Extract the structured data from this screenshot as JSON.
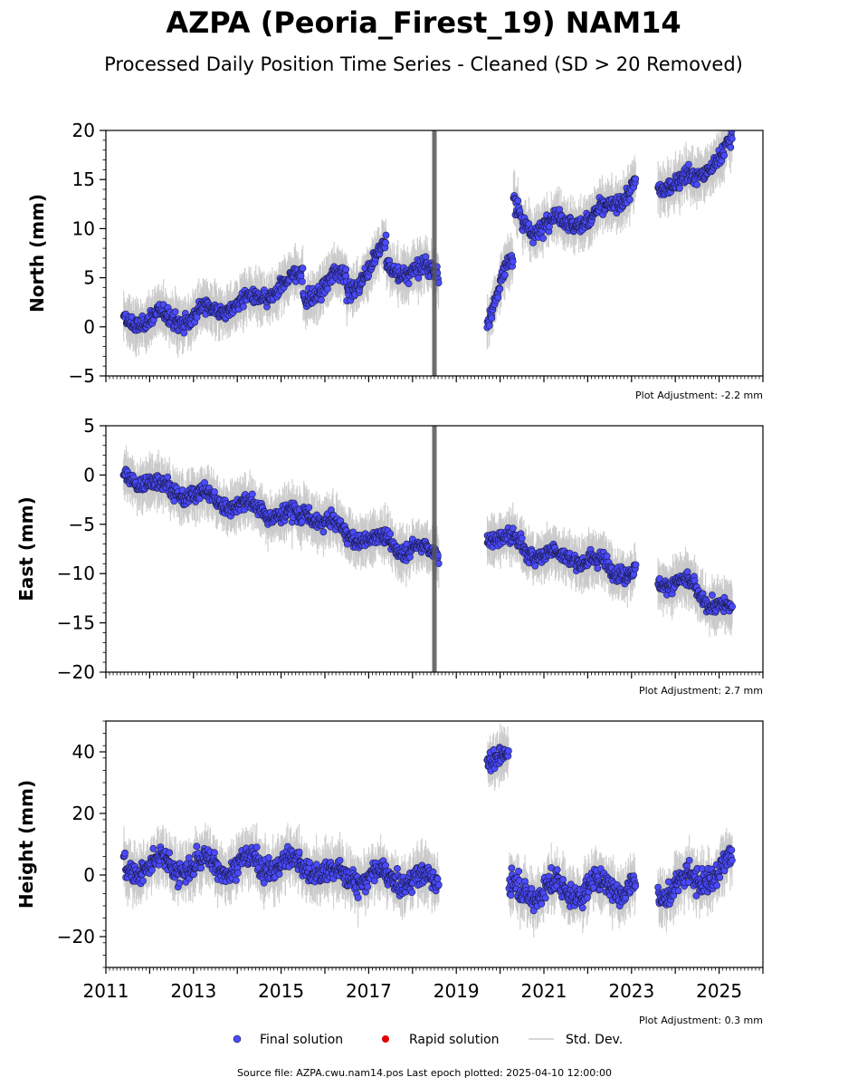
{
  "title": "AZPA (Peoria_Firest_19) NAM14",
  "subtitle": "Processed Daily Position Time Series - Cleaned (SD > 20 Removed)",
  "footer": "Source file: AZPA.cwu.nam14.pos  Last epoch plotted: 2025-04-10 12:00:00",
  "legend": {
    "final": "Final solution",
    "rapid": "Rapid solution",
    "std": "Std. Dev."
  },
  "colors": {
    "final": "#4a4aff",
    "rapid": "#e00000",
    "std": "#c8c8c8"
  },
  "chart_data": [
    {
      "type": "scatter",
      "ylabel": "North (mm)",
      "adjustment": "Plot Adjustment: -2.2 mm",
      "xlim": [
        2011,
        2026
      ],
      "ylim": [
        -5,
        20
      ],
      "yticks": [
        -5,
        0,
        5,
        10,
        15,
        20
      ],
      "segments": [
        {
          "t0": 2011.4,
          "t1": 2012.0,
          "y0": 0.5,
          "y1": 0.8,
          "noise": 1.0,
          "sd": 2.0
        },
        {
          "t0": 2012.0,
          "t1": 2013.0,
          "y0": 0.8,
          "y1": 1.0,
          "noise": 1.1,
          "sd": 2.0
        },
        {
          "t0": 2013.0,
          "t1": 2014.5,
          "y0": 1.3,
          "y1": 2.8,
          "noise": 1.0,
          "sd": 2.0
        },
        {
          "t0": 2014.5,
          "t1": 2015.5,
          "y0": 2.8,
          "y1": 5.3,
          "noise": 0.9,
          "sd": 2.0
        },
        {
          "t0": 2015.5,
          "t1": 2016.5,
          "y0": 3.0,
          "y1": 5.5,
          "noise": 1.1,
          "sd": 2.0
        },
        {
          "t0": 2016.5,
          "t1": 2017.4,
          "y0": 3.5,
          "y1": 8.0,
          "noise": 1.1,
          "sd": 2.0
        },
        {
          "t0": 2017.4,
          "t1": 2018.6,
          "y0": 6.0,
          "y1": 5.5,
          "noise": 1.1,
          "sd": 2.0
        },
        {
          "t0": 2019.7,
          "t1": 2020.1,
          "y0": 1.0,
          "y1": 5.5,
          "noise": 1.0,
          "sd": 2.0
        },
        {
          "t0": 2020.1,
          "t1": 2020.3,
          "y0": 5.5,
          "y1": 6.5,
          "noise": 1.0,
          "sd": 2.0
        },
        {
          "t0": 2020.3,
          "t1": 2020.5,
          "y0": 12.5,
          "y1": 11.0,
          "noise": 1.0,
          "sd": 2.0
        },
        {
          "t0": 2020.5,
          "t1": 2021.0,
          "y0": 10.5,
          "y1": 10.0,
          "noise": 1.1,
          "sd": 2.0
        },
        {
          "t0": 2021.0,
          "t1": 2022.0,
          "y0": 10.5,
          "y1": 11.0,
          "noise": 1.0,
          "sd": 2.0
        },
        {
          "t0": 2022.0,
          "t1": 2023.1,
          "y0": 10.5,
          "y1": 14.5,
          "noise": 1.0,
          "sd": 2.0
        },
        {
          "t0": 2023.6,
          "t1": 2024.5,
          "y0": 14.5,
          "y1": 15.0,
          "noise": 1.1,
          "sd": 2.0
        },
        {
          "t0": 2024.5,
          "t1": 2025.3,
          "y0": 15.5,
          "y1": 18.5,
          "noise": 1.0,
          "sd": 2.0
        }
      ]
    },
    {
      "type": "scatter",
      "ylabel": "East (mm)",
      "adjustment": "Plot Adjustment: 2.7 mm",
      "xlim": [
        2011,
        2026
      ],
      "ylim": [
        -20,
        5
      ],
      "yticks": [
        -20,
        -15,
        -10,
        -5,
        0,
        5
      ],
      "segments": [
        {
          "t0": 2011.4,
          "t1": 2012.5,
          "y0": 0.0,
          "y1": -1.5,
          "noise": 1.0,
          "sd": 2.0
        },
        {
          "t0": 2012.5,
          "t1": 2014.0,
          "y0": -1.5,
          "y1": -3.0,
          "noise": 1.0,
          "sd": 2.0
        },
        {
          "t0": 2014.0,
          "t1": 2015.5,
          "y0": -3.0,
          "y1": -4.5,
          "noise": 1.0,
          "sd": 2.0
        },
        {
          "t0": 2015.5,
          "t1": 2016.5,
          "y0": -3.5,
          "y1": -6.0,
          "noise": 1.0,
          "sd": 2.0
        },
        {
          "t0": 2016.5,
          "t1": 2018.6,
          "y0": -6.0,
          "y1": -8.0,
          "noise": 1.0,
          "sd": 2.0
        },
        {
          "t0": 2019.7,
          "t1": 2020.5,
          "y0": -6.0,
          "y1": -7.0,
          "noise": 1.0,
          "sd": 2.0
        },
        {
          "t0": 2020.5,
          "t1": 2021.5,
          "y0": -7.5,
          "y1": -8.5,
          "noise": 1.0,
          "sd": 2.0
        },
        {
          "t0": 2021.5,
          "t1": 2023.1,
          "y0": -8.0,
          "y1": -10.0,
          "noise": 1.0,
          "sd": 2.0
        },
        {
          "t0": 2023.6,
          "t1": 2024.5,
          "y0": -10.5,
          "y1": -11.5,
          "noise": 1.0,
          "sd": 2.0
        },
        {
          "t0": 2024.5,
          "t1": 2025.3,
          "y0": -12.0,
          "y1": -14.0,
          "noise": 1.0,
          "sd": 2.0
        }
      ]
    },
    {
      "type": "scatter",
      "ylabel": "Height (mm)",
      "adjustment": "Plot Adjustment: 0.3 mm",
      "xlim": [
        2011,
        2026
      ],
      "ylim": [
        -30,
        50
      ],
      "yticks": [
        -20,
        0,
        20,
        40
      ],
      "xticks": [
        2011,
        2013,
        2015,
        2017,
        2019,
        2021,
        2023,
        2025
      ],
      "segments": [
        {
          "t0": 2011.4,
          "t1": 2013.0,
          "y0": 3.0,
          "y1": 3.0,
          "noise": 4.5,
          "sd": 7.0
        },
        {
          "t0": 2013.0,
          "t1": 2015.0,
          "y0": 3.0,
          "y1": 4.0,
          "noise": 4.5,
          "sd": 7.0
        },
        {
          "t0": 2015.0,
          "t1": 2016.0,
          "y0": 4.0,
          "y1": 2.0,
          "noise": 4.5,
          "sd": 7.0
        },
        {
          "t0": 2016.0,
          "t1": 2018.6,
          "y0": 0.0,
          "y1": -2.0,
          "noise": 4.0,
          "sd": 7.0
        },
        {
          "t0": 2019.7,
          "t1": 2020.2,
          "y0": 40.0,
          "y1": 37.0,
          "noise": 3.5,
          "sd": 6.0
        },
        {
          "t0": 2020.2,
          "t1": 2021.5,
          "y0": -5.0,
          "y1": -5.0,
          "noise": 5.0,
          "sd": 7.0
        },
        {
          "t0": 2021.5,
          "t1": 2023.1,
          "y0": -5.0,
          "y1": -3.0,
          "noise": 5.0,
          "sd": 7.0
        },
        {
          "t0": 2023.6,
          "t1": 2024.5,
          "y0": -5.0,
          "y1": -2.0,
          "noise": 5.0,
          "sd": 7.0
        },
        {
          "t0": 2024.5,
          "t1": 2025.3,
          "y0": 0.0,
          "y1": 3.0,
          "noise": 5.0,
          "sd": 7.0
        }
      ]
    }
  ]
}
